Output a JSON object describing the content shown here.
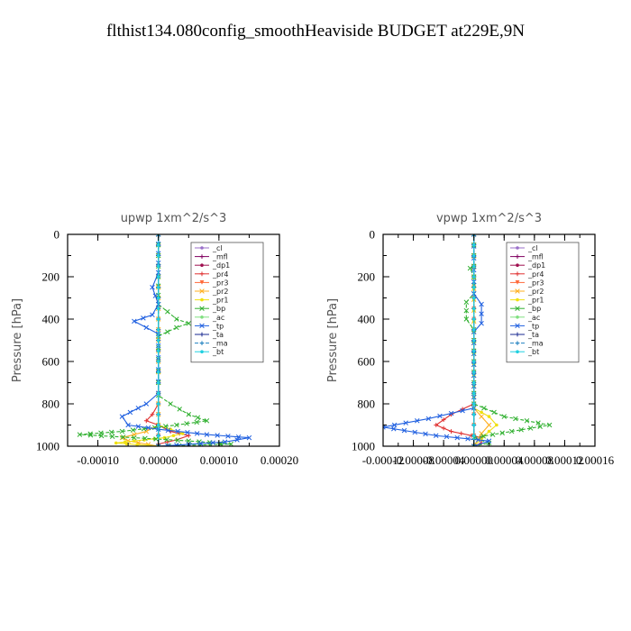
{
  "page_title": "flthist134.080config_smoothHeaviside  BUDGET at229E,9N",
  "chart_data": [
    {
      "type": "line",
      "title": "upwp   1xm^2/s^3",
      "ylabel": "Pressure [hPa]",
      "xlabel": "",
      "y_reversed": true,
      "ylim": [
        0,
        1000
      ],
      "xlim": [
        -0.00015,
        0.0002
      ],
      "y_ticks": [
        0,
        200,
        400,
        600,
        800,
        1000
      ],
      "x_ticks": [
        "-0.00010",
        "0.00000",
        "0.00010",
        "0.00020"
      ],
      "x_tick_values": [
        -0.0001,
        0,
        0.0001,
        0.0002
      ],
      "grid": false,
      "legend_position": "top-right",
      "series": [
        {
          "name": "_cl",
          "color": "#9a6fc9",
          "marker": "o",
          "points": [
            [
              0,
              0
            ],
            [
              0,
              200
            ],
            [
              0,
              400
            ],
            [
              0,
              600
            ],
            [
              0,
              800
            ],
            [
              0,
              1000
            ]
          ]
        },
        {
          "name": "_mfl",
          "color": "#800060",
          "marker": "+",
          "points": [
            [
              0,
              0
            ],
            [
              0,
              1000
            ]
          ]
        },
        {
          "name": "_dp1",
          "color": "#a01050",
          "marker": "o",
          "points": [
            [
              0,
              0
            ],
            [
              0,
              1000
            ]
          ]
        },
        {
          "name": "_pr4",
          "color": "#e03030",
          "marker": "+",
          "points": [
            [
              0,
              0
            ],
            [
              0,
              700
            ],
            [
              0,
              800
            ],
            [
              -1e-05,
              850
            ],
            [
              -2e-05,
              880
            ],
            [
              0,
              900
            ],
            [
              2e-05,
              930
            ],
            [
              5e-05,
              950
            ],
            [
              3e-05,
              970
            ],
            [
              0,
              990
            ],
            [
              0,
              1000
            ]
          ]
        },
        {
          "name": "_pr3",
          "color": "#ff6a3a",
          "marker": "v",
          "points": [
            [
              0,
              0
            ],
            [
              0,
              1000
            ]
          ]
        },
        {
          "name": "_pr2",
          "color": "#ffb020",
          "marker": "x",
          "points": [
            [
              0,
              0
            ],
            [
              0,
              900
            ],
            [
              -2e-05,
              930
            ],
            [
              -6e-05,
              960
            ],
            [
              -5e-05,
              975
            ],
            [
              0,
              1000
            ]
          ]
        },
        {
          "name": "_pr1",
          "color": "#f0e010",
          "marker": "o",
          "points": [
            [
              0,
              0
            ],
            [
              0,
              900
            ],
            [
              2e-05,
              920
            ],
            [
              4e-05,
              940
            ],
            [
              1e-05,
              960
            ],
            [
              -4e-05,
              975
            ],
            [
              -7e-05,
              985
            ],
            [
              0,
              1000
            ]
          ]
        },
        {
          "name": "_bp",
          "color": "#30b030",
          "marker": "x",
          "points": [
            [
              0,
              0
            ],
            [
              0,
              200
            ],
            [
              0,
              330
            ],
            [
              3e-05,
              400
            ],
            [
              5e-05,
              420
            ],
            [
              3e-05,
              440
            ],
            [
              0,
              480
            ],
            [
              0,
              700
            ],
            [
              0,
              760
            ],
            [
              2e-05,
              800
            ],
            [
              5e-05,
              850
            ],
            [
              8e-05,
              880
            ],
            [
              3e-05,
              900
            ],
            [
              -6e-05,
              930
            ],
            [
              -0.00013,
              945
            ],
            [
              -4e-05,
              960
            ],
            [
              5e-05,
              975
            ],
            [
              0.00012,
              990
            ],
            [
              0,
              1000
            ]
          ]
        },
        {
          "name": "_ac",
          "color": "#80e080",
          "marker": "o",
          "points": [
            [
              0,
              0
            ],
            [
              0,
              1000
            ]
          ]
        },
        {
          "name": "_tp",
          "color": "#2060e0",
          "marker": "x",
          "points": [
            [
              0,
              0
            ],
            [
              0,
              180
            ],
            [
              -1e-05,
              250
            ],
            [
              0,
              330
            ],
            [
              -1e-05,
              380
            ],
            [
              -4e-05,
              410
            ],
            [
              -2e-05,
              440
            ],
            [
              0,
              470
            ],
            [
              0,
              750
            ],
            [
              -2e-05,
              800
            ],
            [
              -6e-05,
              860
            ],
            [
              -5e-05,
              900
            ],
            [
              0,
              920
            ],
            [
              8e-05,
              945
            ],
            [
              0.00015,
              960
            ],
            [
              0.00011,
              980
            ],
            [
              3e-05,
              995
            ],
            [
              0,
              1000
            ]
          ]
        },
        {
          "name": "_ta",
          "color": "#1a2a90",
          "marker": "+",
          "points": [
            [
              0,
              0
            ],
            [
              0,
              1000
            ]
          ]
        },
        {
          "name": "_ma",
          "color": "#1f80c0",
          "marker": "-",
          "points": [
            [
              0,
              0
            ],
            [
              0,
              1000
            ]
          ]
        },
        {
          "name": "_bt",
          "color": "#20d0e0",
          "marker": "o",
          "points": [
            [
              0,
              0
            ],
            [
              0,
              1000
            ]
          ]
        }
      ]
    },
    {
      "type": "line",
      "title": "vpwp   1xm^2/s^3",
      "ylabel": "Pressure [hPa]",
      "xlabel": "",
      "y_reversed": true,
      "ylim": [
        0,
        1000
      ],
      "xlim": [
        -0.00012,
        0.00016
      ],
      "y_ticks": [
        0,
        200,
        400,
        600,
        800,
        1000
      ],
      "x_ticks": [
        "-0.00012",
        "-0.00008",
        "-0.00004",
        "0.00000",
        "0.00004",
        "0.00008",
        "0.00012",
        "0.00016"
      ],
      "x_tick_values": [
        -0.00012,
        -8e-05,
        -4e-05,
        0,
        4e-05,
        8e-05,
        0.00012,
        0.00016
      ],
      "grid": false,
      "legend_position": "top-right",
      "series": [
        {
          "name": "_cl",
          "color": "#9a6fc9",
          "marker": "o",
          "points": [
            [
              0,
              0
            ],
            [
              0,
              1000
            ]
          ]
        },
        {
          "name": "_mfl",
          "color": "#800060",
          "marker": "+",
          "points": [
            [
              0,
              0
            ],
            [
              0,
              1000
            ]
          ]
        },
        {
          "name": "_dp1",
          "color": "#a01050",
          "marker": "o",
          "points": [
            [
              0,
              0
            ],
            [
              0,
              1000
            ]
          ]
        },
        {
          "name": "_pr4",
          "color": "#e03030",
          "marker": "+",
          "points": [
            [
              0,
              0
            ],
            [
              0,
              800
            ],
            [
              -3e-05,
              850
            ],
            [
              -5e-05,
              900
            ],
            [
              -3e-05,
              930
            ],
            [
              1e-05,
              960
            ],
            [
              1e-05,
              985
            ],
            [
              0,
              1000
            ]
          ]
        },
        {
          "name": "_pr3",
          "color": "#ff6a3a",
          "marker": "v",
          "points": [
            [
              0,
              0
            ],
            [
              0,
              1000
            ]
          ]
        },
        {
          "name": "_pr2",
          "color": "#ffb020",
          "marker": "x",
          "points": [
            [
              0,
              0
            ],
            [
              0,
              820
            ],
            [
              1e-05,
              860
            ],
            [
              2e-05,
              900
            ],
            [
              1e-05,
              940
            ],
            [
              0,
              1000
            ]
          ]
        },
        {
          "name": "_pr1",
          "color": "#f0e010",
          "marker": "o",
          "points": [
            [
              0,
              0
            ],
            [
              0,
              820
            ],
            [
              2e-05,
              860
            ],
            [
              3e-05,
              900
            ],
            [
              2e-05,
              930
            ],
            [
              0,
              1000
            ]
          ]
        },
        {
          "name": "_bp",
          "color": "#30b030",
          "marker": "x",
          "points": [
            [
              0,
              0
            ],
            [
              0,
              150
            ],
            [
              -5e-06,
              160
            ],
            [
              0,
              200
            ],
            [
              0,
              280
            ],
            [
              -1e-05,
              320
            ],
            [
              -1e-05,
              400
            ],
            [
              0,
              450
            ],
            [
              0,
              750
            ],
            [
              0,
              800
            ],
            [
              4e-05,
              860
            ],
            [
              0.0001,
              900
            ],
            [
              5e-05,
              930
            ],
            [
              0,
              960
            ],
            [
              2e-05,
              985
            ],
            [
              0,
              1000
            ]
          ]
        },
        {
          "name": "_ac",
          "color": "#80e080",
          "marker": "o",
          "points": [
            [
              0,
              0
            ],
            [
              0,
              1000
            ]
          ]
        },
        {
          "name": "_tp",
          "color": "#2060e0",
          "marker": "x",
          "points": [
            [
              0,
              0
            ],
            [
              0,
              280
            ],
            [
              1e-05,
              330
            ],
            [
              1e-05,
              420
            ],
            [
              0,
              460
            ],
            [
              0,
              820
            ],
            [
              -6e-05,
              870
            ],
            [
              -0.00012,
              910
            ],
            [
              -5e-05,
              950
            ],
            [
              2e-05,
              975
            ],
            [
              0,
              1000
            ]
          ]
        },
        {
          "name": "_ta",
          "color": "#1a2a90",
          "marker": "+",
          "points": [
            [
              0,
              0
            ],
            [
              0,
              1000
            ]
          ]
        },
        {
          "name": "_ma",
          "color": "#1f80c0",
          "marker": "-",
          "points": [
            [
              0,
              0
            ],
            [
              0,
              1000
            ]
          ]
        },
        {
          "name": "_bt",
          "color": "#20d0e0",
          "marker": "o",
          "points": [
            [
              0,
              0
            ],
            [
              0,
              1000
            ]
          ]
        }
      ]
    }
  ]
}
